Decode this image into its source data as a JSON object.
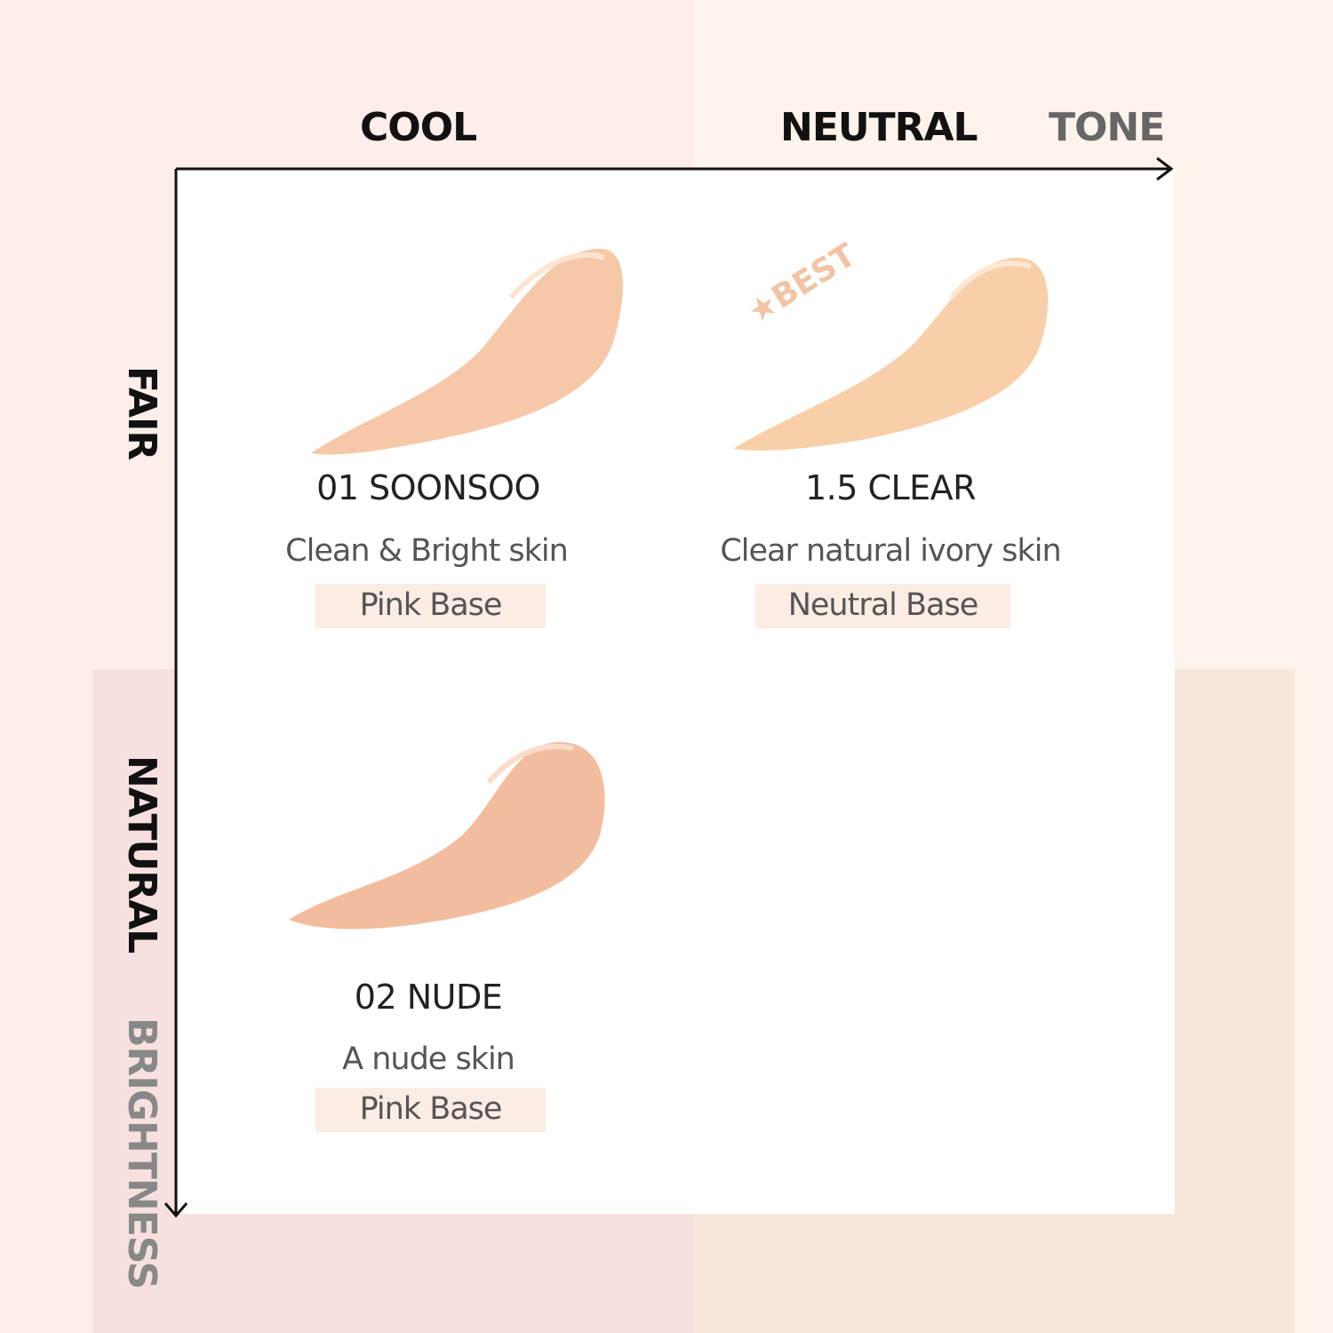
{
  "axes": {
    "cool": "COOL",
    "neutral": "NEUTRAL",
    "tone": "TONE",
    "fair": "FAIR",
    "natural": "NATURAL",
    "brightness": "BRIGHTNESS"
  },
  "shades": [
    {
      "name": "01  SOONSOO",
      "description": "Clean & Bright skin",
      "base": "Pink Base",
      "color": "#f6c8a8"
    },
    {
      "name": "1.5  CLEAR",
      "description": "Clear natural ivory skin",
      "base": "Neutral Base",
      "color": "#f8cfa8",
      "badge": "★BEST"
    },
    {
      "name": "02  NUDE",
      "description": "A nude skin",
      "base": "Pink Base",
      "color": "#f2bd9e"
    }
  ],
  "colors": {
    "bg_cool": "#fdeeea",
    "bg_neutral": "#fdf3ea",
    "band_cool": "#f6e1df",
    "band_neutral": "#f7e6da",
    "badge": "#f0c4a4"
  }
}
